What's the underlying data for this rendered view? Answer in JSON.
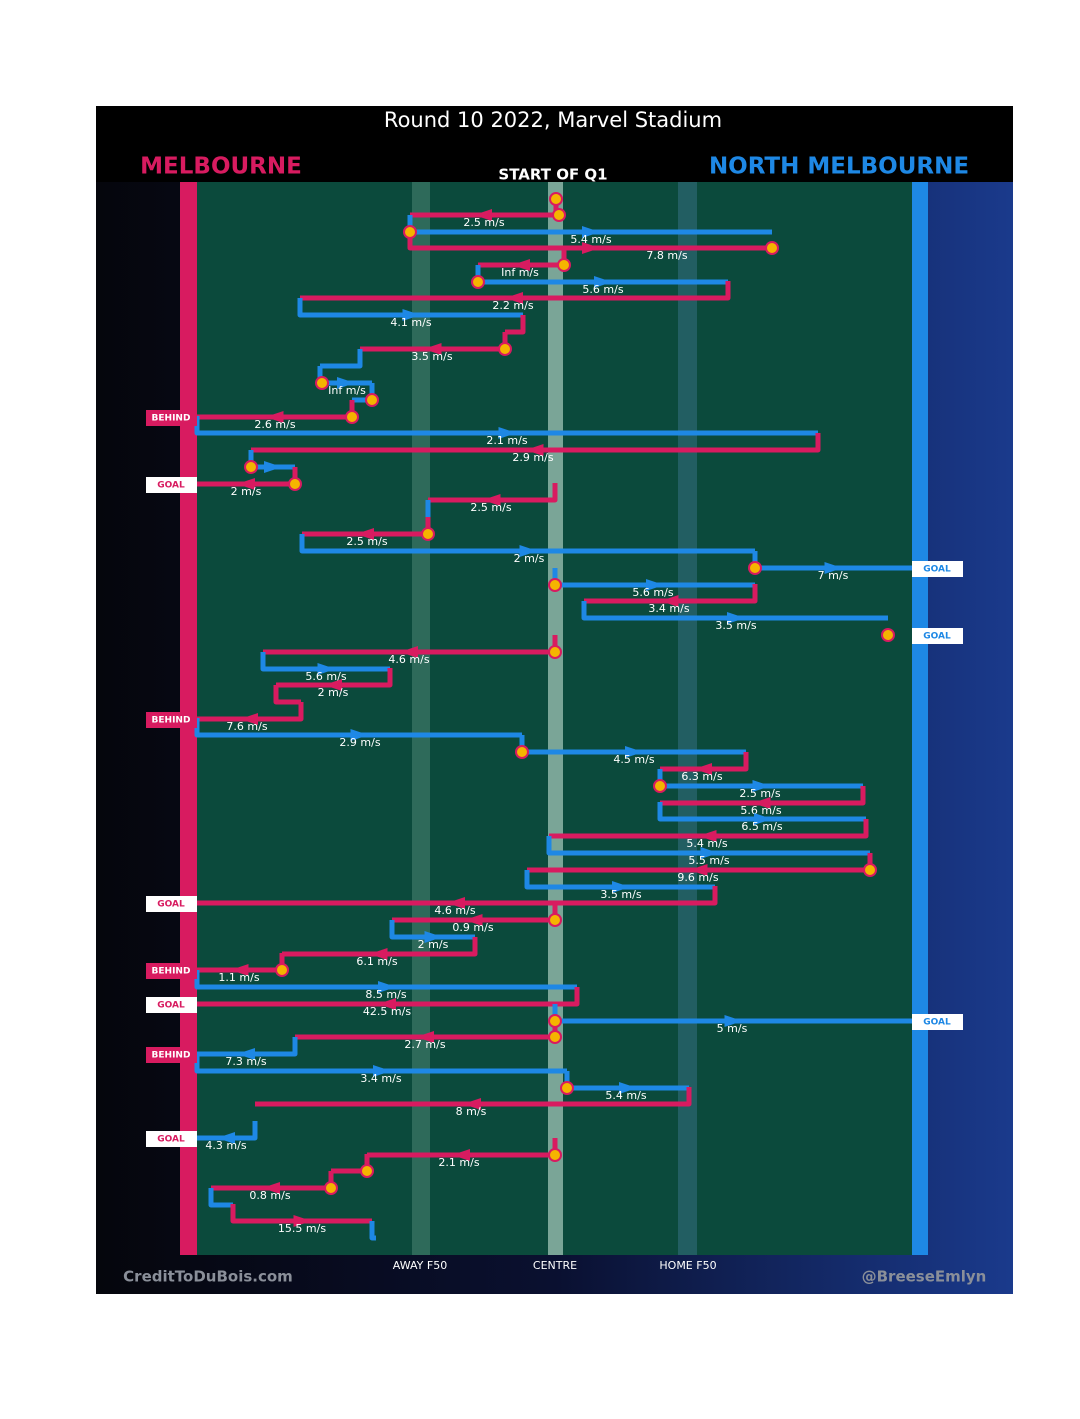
{
  "title": "Round 10 2022, Marvel Stadium",
  "home_team": "MELBOURNE",
  "away_team": "NORTH MELBOURNE",
  "start_label": "START OF Q1",
  "axis_labels": [
    "AWAY F50",
    "CENTRE",
    "HOME F50"
  ],
  "credit_left": "CreditToDuBois.com",
  "credit_right": "@BreeseEmlyn",
  "passes": [
    "2.5 m/s",
    "5.4 m/s",
    "7.8 m/s",
    "Inf m/s",
    "5.6 m/s",
    "2.2 m/s",
    "4.1 m/s",
    "3.5 m/s",
    "Inf m/s",
    "2.6 m/s",
    "2.1 m/s",
    "2.9 m/s",
    "2 m/s",
    "2.5 m/s",
    "2.5 m/s",
    "2 m/s",
    "7 m/s",
    "5.6 m/s",
    "3.4 m/s",
    "3.5 m/s",
    "4.6 m/s",
    "5.6 m/s",
    "2 m/s",
    "7.6 m/s",
    "2.9 m/s",
    "4.5 m/s",
    "6.3 m/s",
    "2.5 m/s",
    "5.6 m/s",
    "6.5 m/s",
    "5.4 m/s",
    "5.5 m/s",
    "9.6 m/s",
    "3.5 m/s",
    "4.6 m/s",
    "0.9 m/s",
    "2 m/s",
    "6.1 m/s",
    "1.1 m/s",
    "8.5 m/s",
    "42.5 m/s",
    "5 m/s",
    "2.7 m/s",
    "7.3 m/s",
    "3.4 m/s",
    "5.4 m/s",
    "8 m/s",
    "4.3 m/s",
    "2.1 m/s",
    "0.8 m/s",
    "15.5 m/s"
  ],
  "outcomes": [
    "BEHIND",
    "GOAL",
    "GOAL",
    "GOAL",
    "BEHIND",
    "GOAL",
    "BEHIND",
    "GOAL",
    "GOAL",
    "BEHIND",
    "GOAL"
  ]
}
